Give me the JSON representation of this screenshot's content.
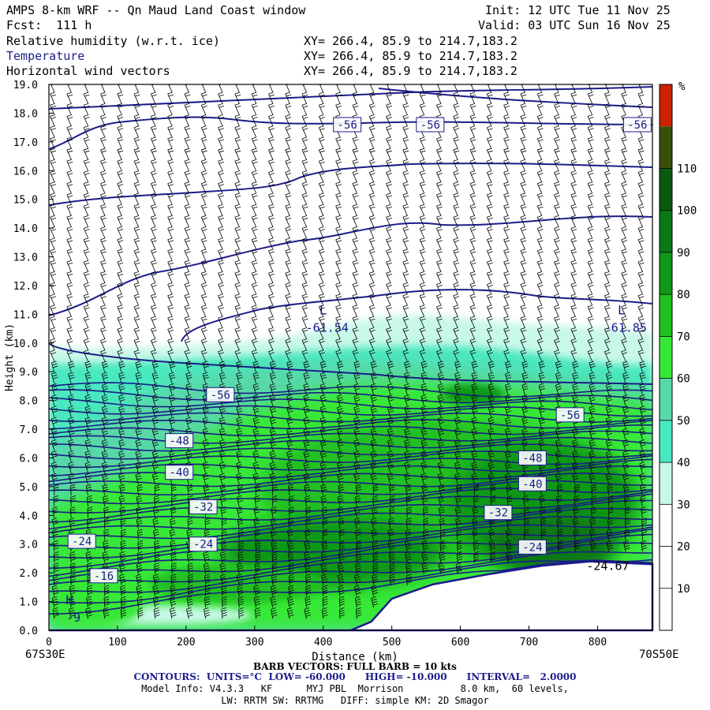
{
  "header": {
    "title": "AMPS 8-km WRF -- Qn Maud Land Coast window",
    "fcst": "Fcst:  111 h",
    "init": "Init: 12 UTC Tue 11 Nov 25",
    "valid": "Valid: 03 UTC Sun 16 Nov 25",
    "fields": [
      {
        "name": "Relative humidity (w.r.t. ice)",
        "xy": "XY= 266.4, 85.9 to 214.7,183.2"
      },
      {
        "name": "Temperature",
        "xy": "XY= 266.4, 85.9 to 214.7,183.2"
      },
      {
        "name": "Horizontal wind vectors",
        "xy": "XY= 266.4, 85.9 to 214.7,183.2"
      }
    ]
  },
  "chart_data": {
    "type": "heatmap",
    "title": "Relative humidity (w.r.t. ice), Temperature, Horizontal wind vectors",
    "xlabel": "Distance (km)",
    "ylabel": "Height (km)",
    "xlim": [
      0,
      880
    ],
    "ylim": [
      0,
      19
    ],
    "xticks": [
      0,
      100,
      200,
      300,
      400,
      500,
      600,
      700,
      800
    ],
    "yticks": [
      "0.0",
      "1.0",
      "2.0",
      "3.0",
      "4.0",
      "5.0",
      "6.0",
      "7.0",
      "8.0",
      "9.0",
      "10.0",
      "11.0",
      "12.0",
      "13.0",
      "14.0",
      "15.0",
      "16.0",
      "17.0",
      "18.0",
      "19.0"
    ],
    "left_endpoint": "67S30E",
    "right_endpoint": "70S50E",
    "colorbar": {
      "unit": "%",
      "levels": [
        10,
        20,
        30,
        40,
        50,
        60,
        70,
        80,
        90,
        100,
        110
      ],
      "colors": [
        "#ffffff",
        "#ffffff",
        "#ffffff",
        "#c8f8e8",
        "#48e8c0",
        "#58d8a8",
        "#38e838",
        "#20c020",
        "#109818",
        "#087818",
        "#0a5a10",
        "#3a5008",
        "#cc2200"
      ]
    },
    "contour_labels": [
      {
        "text": "-56",
        "x": 435,
        "h": 17.6
      },
      {
        "text": "-56",
        "x": 556,
        "h": 17.6
      },
      {
        "text": "-56",
        "x": 858,
        "h": 17.6
      },
      {
        "text": "-56",
        "x": 250,
        "h": 8.2
      },
      {
        "text": "-56",
        "x": 760,
        "h": 7.5
      },
      {
        "text": "-48",
        "x": 190,
        "h": 6.6
      },
      {
        "text": "-48",
        "x": 705,
        "h": 6.0
      },
      {
        "text": "-40",
        "x": 190,
        "h": 5.5
      },
      {
        "text": "-40",
        "x": 705,
        "h": 5.1
      },
      {
        "text": "-32",
        "x": 225,
        "h": 4.3
      },
      {
        "text": "-32",
        "x": 655,
        "h": 4.1
      },
      {
        "text": "-24",
        "x": 48,
        "h": 3.1
      },
      {
        "text": "-24",
        "x": 225,
        "h": 3.0
      },
      {
        "text": "-24",
        "x": 705,
        "h": 2.9
      },
      {
        "text": "-16",
        "x": 80,
        "h": 1.9
      }
    ],
    "extrema": [
      {
        "mark": "L",
        "value": "-61.54",
        "x": 400,
        "h": 11.0
      },
      {
        "mark": "L",
        "value": "-61.85",
        "x": 835,
        "h": 11.0
      },
      {
        "mark": "H",
        "value": "-9",
        "x": 30,
        "h": 0.9
      }
    ],
    "point_labels": [
      {
        "text": "-24.67",
        "x": 815,
        "h": 2.1
      }
    ],
    "terrain": [
      [
        0,
        0
      ],
      [
        440,
        0
      ],
      [
        470,
        0.3
      ],
      [
        500,
        1.1
      ],
      [
        560,
        1.6
      ],
      [
        640,
        1.95
      ],
      [
        720,
        2.25
      ],
      [
        790,
        2.4
      ],
      [
        880,
        2.3
      ]
    ]
  },
  "footer": {
    "barb": "BARB VECTORS: FULL BARB = 10 kts",
    "contours": "CONTOURS:  UNITS=°C  LOW= -60.000      HIGH= -10.000      INTERVAL=   2.0000",
    "model1": "Model Info: V4.3.3   KF      MYJ PBL  Morrison          8.0 km,  60 levels,",
    "model2": "LW: RRTM SW: RRTMG   DIFF: simple KM: 2D Smagor"
  }
}
